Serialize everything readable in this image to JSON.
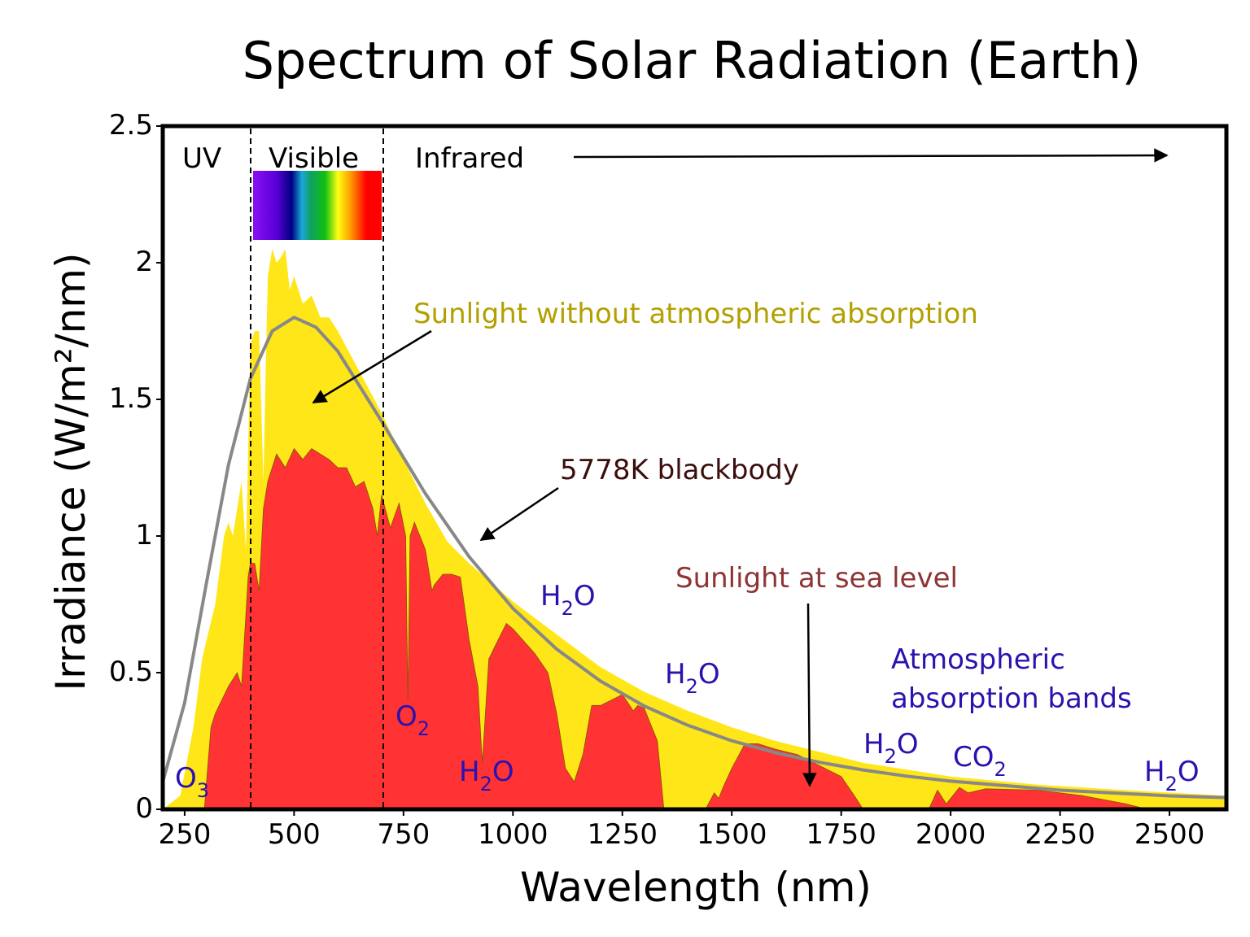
{
  "chart_data": {
    "type": "area",
    "title": "Spectrum of Solar Radiation (Earth)",
    "xlabel": "Wavelength (nm)",
    "ylabel": "Irradiance (W/m²/nm)",
    "xlim": [
      200,
      2630
    ],
    "ylim": [
      0,
      2.5
    ],
    "xticks": [
      250,
      500,
      750,
      1000,
      1250,
      1500,
      1750,
      2000,
      2250,
      2500
    ],
    "yticks": [
      0,
      0.5,
      1,
      1.5,
      2,
      2.5
    ],
    "ytick_labels": [
      "0",
      "0.5",
      "1",
      "1.5",
      "2",
      "2.5"
    ],
    "grid": false,
    "legend": "none",
    "series": [
      {
        "key": "top_of_atmosphere",
        "color": "#ffe619",
        "x": [
          200,
          240,
          270,
          290,
          300,
          320,
          340,
          350,
          360,
          380,
          390,
          395,
          400,
          410,
          420,
          430,
          435,
          440,
          450,
          460,
          470,
          480,
          490,
          500,
          520,
          540,
          560,
          580,
          600,
          650,
          700,
          750,
          800,
          850,
          900,
          1000,
          1100,
          1200,
          1300,
          1400,
          1500,
          1600,
          1700,
          1800,
          2000,
          2200,
          2400,
          2630
        ],
        "y": [
          0,
          0.05,
          0.3,
          0.55,
          0.62,
          0.75,
          1.0,
          1.05,
          1.0,
          1.2,
          0.95,
          1.3,
          1.7,
          1.75,
          1.75,
          1.2,
          1.6,
          1.95,
          2.05,
          2.0,
          2.02,
          2.05,
          1.9,
          1.95,
          1.85,
          1.88,
          1.8,
          1.8,
          1.75,
          1.6,
          1.45,
          1.28,
          1.12,
          0.98,
          0.9,
          0.76,
          0.64,
          0.52,
          0.43,
          0.36,
          0.3,
          0.25,
          0.21,
          0.17,
          0.12,
          0.09,
          0.07,
          0.05
        ]
      },
      {
        "key": "sea_level",
        "color": "#ff3333",
        "x": [
          200,
          295,
          310,
          320,
          350,
          370,
          380,
          395,
          400,
          410,
          420,
          430,
          440,
          460,
          480,
          500,
          520,
          540,
          560,
          580,
          600,
          620,
          640,
          660,
          680,
          690,
          700,
          720,
          740,
          755,
          760,
          765,
          775,
          800,
          815,
          820,
          840,
          860,
          880,
          900,
          920,
          930,
          945,
          960,
          985,
          1000,
          1050,
          1080,
          1100,
          1120,
          1140,
          1160,
          1180,
          1200,
          1250,
          1275,
          1285,
          1300,
          1330,
          1345,
          1440,
          1460,
          1470,
          1480,
          1500,
          1530,
          1560,
          1600,
          1650,
          1700,
          1750,
          1780,
          1800,
          1950,
          1970,
          1990,
          2020,
          2040,
          2080,
          2200,
          2300,
          2400,
          2450,
          2630
        ],
        "y": [
          0,
          0,
          0.3,
          0.35,
          0.45,
          0.5,
          0.45,
          0.85,
          0.9,
          0.9,
          0.8,
          1.1,
          1.2,
          1.3,
          1.25,
          1.32,
          1.28,
          1.32,
          1.3,
          1.28,
          1.25,
          1.25,
          1.18,
          1.2,
          1.1,
          1.0,
          1.15,
          1.03,
          1.12,
          1.0,
          0.4,
          1.0,
          1.05,
          0.95,
          0.8,
          0.82,
          0.86,
          0.86,
          0.85,
          0.62,
          0.45,
          0.17,
          0.55,
          0.6,
          0.68,
          0.66,
          0.57,
          0.5,
          0.35,
          0.15,
          0.1,
          0.2,
          0.38,
          0.38,
          0.42,
          0.36,
          0.38,
          0.37,
          0.25,
          0,
          0,
          0.06,
          0.04,
          0.08,
          0.15,
          0.24,
          0.24,
          0.22,
          0.2,
          0.16,
          0.12,
          0.05,
          0,
          0,
          0.07,
          0.02,
          0.08,
          0.06,
          0.075,
          0.07,
          0.05,
          0.02,
          0,
          0
        ]
      },
      {
        "key": "blackbody",
        "color": "#888888",
        "x": [
          200,
          250,
          300,
          350,
          400,
          450,
          500,
          550,
          600,
          700,
          800,
          900,
          1000,
          1100,
          1200,
          1300,
          1400,
          1500,
          1600,
          1700,
          1800,
          1900,
          2000,
          2250,
          2500,
          2630
        ],
        "y": [
          0.1,
          0.39,
          0.83,
          1.26,
          1.575,
          1.75,
          1.8,
          1.764,
          1.676,
          1.42,
          1.155,
          0.924,
          0.735,
          0.586,
          0.469,
          0.378,
          0.307,
          0.251,
          0.207,
          0.172,
          0.144,
          0.121,
          0.103,
          0.07,
          0.049,
          0.043
        ]
      }
    ],
    "regions": {
      "uv": "UV",
      "visible": "Visible",
      "infrared": "Infrared",
      "visible_range_nm": [
        400,
        700
      ]
    },
    "annotations": {
      "no_atmosphere": {
        "text": "Sunlight without atmospheric absorption",
        "color": "#b3a000"
      },
      "blackbody": {
        "text": "5778K blackbody",
        "color": "#3b0d0d"
      },
      "sea_level": {
        "text": "Sunlight at sea level",
        "color": "#8e3434"
      },
      "bands_line1": "Atmospheric",
      "bands_line2": "absorption bands",
      "bands_color": "#2a12b0"
    },
    "molecules": [
      {
        "base": "O",
        "sub": "3",
        "tail": ""
      },
      {
        "base": "O",
        "sub": "2",
        "tail": ""
      },
      {
        "base": "H",
        "sub": "2",
        "tail": "O"
      },
      {
        "base": "H",
        "sub": "2",
        "tail": "O"
      },
      {
        "base": "H",
        "sub": "2",
        "tail": "O"
      },
      {
        "base": "H",
        "sub": "2",
        "tail": "O"
      },
      {
        "base": "CO",
        "sub": "2",
        "tail": ""
      },
      {
        "base": "H",
        "sub": "2",
        "tail": "O"
      }
    ]
  }
}
